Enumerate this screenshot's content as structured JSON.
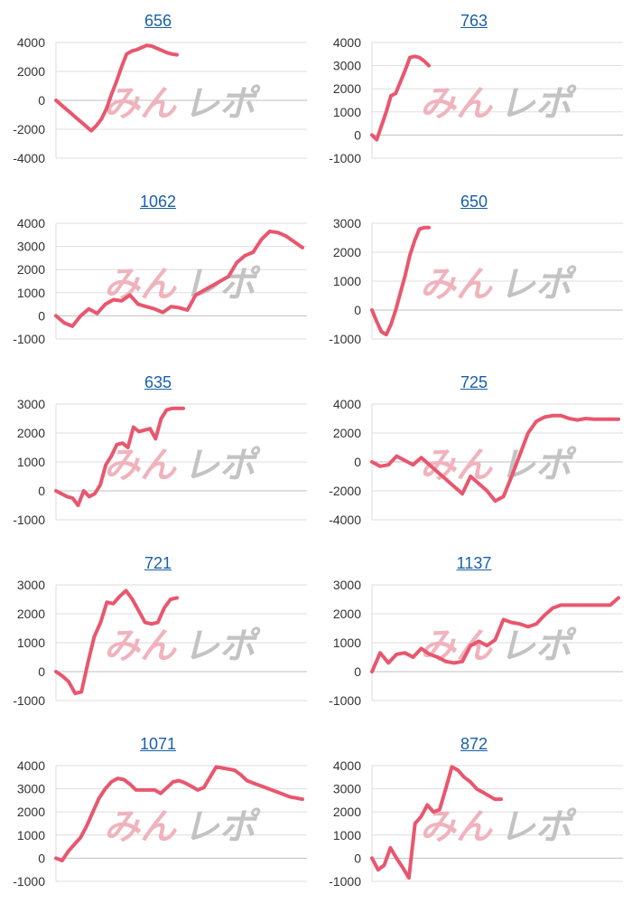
{
  "colors": {
    "series": "#e8576e",
    "title_link": "#1a5fa8",
    "grid": "#dddddd",
    "axis": "#bfbfbf",
    "watermark_pink": "#f0b3bd",
    "watermark_gray": "#c3c3c3"
  },
  "watermark": {
    "part1": "みん",
    "part2": "レポ"
  },
  "chart_data": [
    {
      "type": "line",
      "title": "656",
      "ylim": [
        -4000,
        4000
      ],
      "yticks": [
        -4000,
        -2000,
        0,
        2000,
        4000
      ],
      "x": [
        0,
        1,
        2,
        3,
        4,
        5,
        6,
        7,
        8,
        9,
        10,
        11,
        12,
        13,
        14,
        15,
        16,
        17,
        18,
        19,
        20,
        21,
        22,
        23,
        24
      ],
      "series": [
        {
          "values": [
            0,
            -300,
            -600,
            -900,
            -1200,
            -1500,
            -1800,
            -2100,
            -1750,
            -1300,
            -600,
            400,
            1300,
            2300,
            3200,
            3400,
            3500,
            3650,
            3800,
            3750,
            3600,
            3450,
            3300,
            3200,
            3150
          ]
        }
      ]
    },
    {
      "type": "line",
      "title": "763",
      "ylim": [
        -1000,
        4000
      ],
      "yticks": [
        -1000,
        0,
        1000,
        2000,
        3000,
        4000
      ],
      "x": [
        0,
        1,
        2,
        3,
        4,
        5,
        6,
        7,
        8,
        9,
        10,
        11,
        12
      ],
      "series": [
        {
          "values": [
            0,
            -200,
            400,
            1000,
            1700,
            1800,
            2300,
            2800,
            3350,
            3400,
            3350,
            3200,
            3000
          ]
        }
      ]
    },
    {
      "type": "line",
      "title": "1062",
      "ylim": [
        -1000,
        4000
      ],
      "yticks": [
        -1000,
        0,
        1000,
        2000,
        3000,
        4000
      ],
      "x": [
        0,
        1,
        2,
        3,
        4,
        5,
        6,
        7,
        8,
        9,
        10,
        11,
        12,
        13,
        14,
        15,
        16,
        17,
        18,
        19,
        20,
        21,
        22,
        23,
        24,
        25,
        26,
        27,
        28,
        29,
        30
      ],
      "series": [
        {
          "values": [
            0,
            -300,
            -450,
            0,
            300,
            100,
            500,
            700,
            650,
            900,
            500,
            400,
            300,
            150,
            400,
            350,
            250,
            900,
            1100,
            1300,
            1500,
            1700,
            2300,
            2600,
            2750,
            3300,
            3650,
            3600,
            3450,
            3200,
            2950
          ]
        }
      ]
    },
    {
      "type": "line",
      "title": "650",
      "ylim": [
        -1000,
        3000
      ],
      "yticks": [
        -1000,
        0,
        1000,
        2000,
        3000
      ],
      "x": [
        0,
        1,
        2,
        3,
        4,
        5,
        6,
        7,
        8,
        9,
        10,
        11,
        12
      ],
      "series": [
        {
          "values": [
            0,
            -400,
            -750,
            -850,
            -500,
            0,
            600,
            1200,
            1900,
            2400,
            2800,
            2850,
            2850
          ]
        }
      ]
    },
    {
      "type": "line",
      "title": "635",
      "ylim": [
        -1000,
        3000
      ],
      "yticks": [
        -1000,
        0,
        1000,
        2000,
        3000
      ],
      "x": [
        0,
        1,
        2,
        3,
        4,
        5,
        6,
        7,
        8,
        9,
        10,
        11,
        12,
        13,
        14,
        15,
        16,
        17,
        18,
        19,
        20,
        21,
        22,
        23
      ],
      "series": [
        {
          "values": [
            0,
            -100,
            -200,
            -250,
            -500,
            0,
            -200,
            -100,
            200,
            900,
            1200,
            1600,
            1650,
            1500,
            2200,
            2050,
            2100,
            2150,
            1800,
            2500,
            2800,
            2850,
            2850,
            2850
          ]
        }
      ]
    },
    {
      "type": "line",
      "title": "725",
      "ylim": [
        -4000,
        4000
      ],
      "yticks": [
        -4000,
        -2000,
        0,
        2000,
        4000
      ],
      "x": [
        0,
        1,
        2,
        3,
        4,
        5,
        6,
        7,
        8,
        9,
        10,
        11,
        12,
        13,
        14,
        15,
        16,
        17,
        18,
        19,
        20,
        21,
        22,
        23,
        24,
        25,
        26,
        27,
        28,
        29,
        30
      ],
      "series": [
        {
          "values": [
            0,
            -300,
            -200,
            400,
            100,
            -200,
            300,
            -200,
            -700,
            -1200,
            -1700,
            -2200,
            -1000,
            -1500,
            -2000,
            -2700,
            -2400,
            -1000,
            500,
            2000,
            2800,
            3100,
            3200,
            3200,
            3000,
            2900,
            3000,
            2950,
            2950,
            2950,
            2950
          ]
        }
      ]
    },
    {
      "type": "line",
      "title": "721",
      "ylim": [
        -1000,
        3000
      ],
      "yticks": [
        -1000,
        0,
        1000,
        2000,
        3000
      ],
      "x": [
        0,
        1,
        2,
        3,
        4,
        5,
        6,
        7,
        8,
        9,
        10,
        11,
        12,
        13,
        14,
        15,
        16,
        17,
        18,
        19
      ],
      "series": [
        {
          "values": [
            0,
            -150,
            -350,
            -750,
            -700,
            300,
            1200,
            1700,
            2400,
            2350,
            2600,
            2800,
            2500,
            2100,
            1700,
            1650,
            1700,
            2200,
            2500,
            2550
          ]
        }
      ]
    },
    {
      "type": "line",
      "title": "1137",
      "ylim": [
        -1000,
        3000
      ],
      "yticks": [
        -1000,
        0,
        1000,
        2000,
        3000
      ],
      "x": [
        0,
        1,
        2,
        3,
        4,
        5,
        6,
        7,
        8,
        9,
        10,
        11,
        12,
        13,
        14,
        15,
        16,
        17,
        18,
        19,
        20,
        21,
        22,
        23,
        24,
        25,
        26,
        27,
        28,
        29,
        30
      ],
      "series": [
        {
          "values": [
            0,
            650,
            300,
            600,
            650,
            500,
            800,
            600,
            500,
            350,
            300,
            350,
            900,
            1050,
            900,
            1100,
            1800,
            1700,
            1650,
            1550,
            1650,
            1950,
            2200,
            2300,
            2300,
            2300,
            2300,
            2300,
            2300,
            2300,
            2550
          ]
        }
      ]
    },
    {
      "type": "line",
      "title": "1071",
      "ylim": [
        -1000,
        4000
      ],
      "yticks": [
        -1000,
        0,
        1000,
        2000,
        3000,
        4000
      ],
      "x": [
        0,
        1,
        2,
        3,
        4,
        5,
        6,
        7,
        8,
        9,
        10,
        11,
        12,
        13,
        14,
        15,
        16,
        17,
        18,
        19,
        20,
        21,
        22,
        23,
        24,
        25,
        26,
        27,
        28,
        29,
        30,
        31,
        32,
        33,
        34,
        35,
        36,
        37,
        38,
        39,
        40
      ],
      "series": [
        {
          "values": [
            0,
            -100,
            300,
            600,
            900,
            1400,
            2000,
            2600,
            3000,
            3300,
            3450,
            3400,
            3200,
            2950,
            2950,
            2950,
            2950,
            2800,
            3050,
            3300,
            3350,
            3250,
            3100,
            2950,
            3050,
            3500,
            3950,
            3900,
            3850,
            3800,
            3600,
            3350,
            3250,
            3150,
            3050,
            2950,
            2850,
            2750,
            2650,
            2600,
            2550
          ]
        }
      ]
    },
    {
      "type": "line",
      "title": "872",
      "ylim": [
        -1000,
        4000
      ],
      "yticks": [
        -1000,
        0,
        1000,
        2000,
        3000,
        4000
      ],
      "x": [
        0,
        1,
        2,
        3,
        4,
        5,
        6,
        7,
        8,
        9,
        10,
        11,
        12,
        13,
        14,
        15,
        16,
        17,
        18,
        19,
        20,
        21
      ],
      "series": [
        {
          "values": [
            0,
            -500,
            -300,
            450,
            0,
            -400,
            -850,
            1500,
            1800,
            2300,
            2000,
            2100,
            3000,
            3950,
            3800,
            3500,
            3300,
            3000,
            2850,
            2700,
            2550,
            2550
          ]
        }
      ]
    }
  ]
}
